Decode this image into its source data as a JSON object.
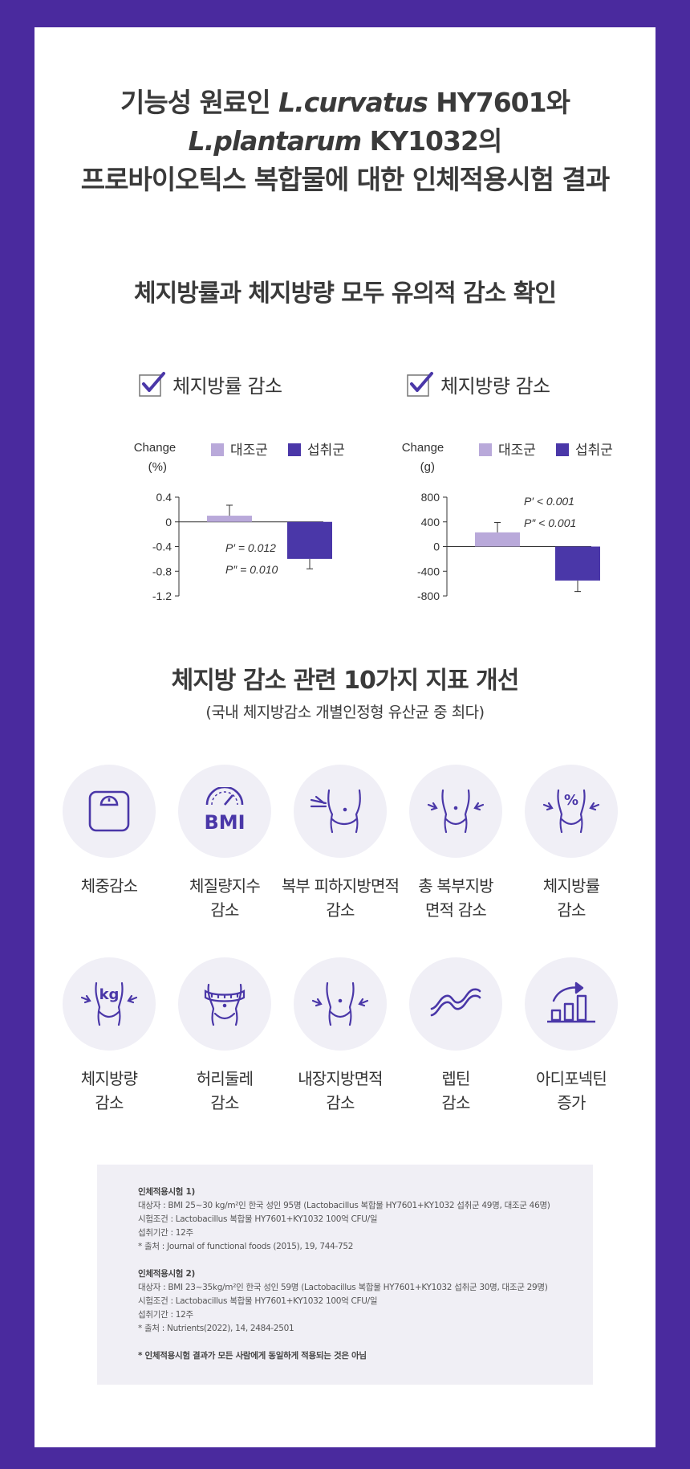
{
  "title": {
    "line1_a": "기능성 원료인 ",
    "line1_b": "L.curvatus",
    "line1_c": " HY7601와",
    "line2_a": "L.plantarum",
    "line2_b": " KY1032의",
    "line3": "프로바이오틱스 복합물에 대한 인체적용시험 결과"
  },
  "section1": {
    "title": "체지방률과 체지방량 모두 유의적 감소 확인"
  },
  "colors": {
    "control": "#b9a9da",
    "intake": "#4a37a8",
    "accent": "#4a2a9e"
  },
  "chart_data": [
    {
      "type": "bar",
      "title": "체지방률 감소",
      "ylabel": "Change (%)",
      "ylabel_lines": [
        "Change",
        "(%)"
      ],
      "ylim": [
        -1.2,
        0.4
      ],
      "yticks": [
        0.4,
        0,
        -0.4,
        -0.8,
        -1.2
      ],
      "ytick_labels": [
        "0.4",
        "0",
        "-0.4",
        "-0.8",
        "-1.2"
      ],
      "categories": [
        "대조군",
        "섭취군"
      ],
      "values": [
        0.1,
        -0.6
      ],
      "errors": [
        0.17,
        0.16
      ],
      "legend": [
        "대조군",
        "섭취군"
      ],
      "annotations": [
        "P′ = 0.012",
        "P″ = 0.010"
      ]
    },
    {
      "type": "bar",
      "title": "체지방량 감소",
      "ylabel": "Change (g)",
      "ylabel_lines": [
        "Change",
        "(g)"
      ],
      "ylim": [
        -800,
        800
      ],
      "yticks": [
        800,
        400,
        0,
        -400,
        -800
      ],
      "ytick_labels": [
        "800",
        "400",
        "0",
        "-400",
        "-800"
      ],
      "categories": [
        "대조군",
        "섭취군"
      ],
      "values": [
        230,
        -550
      ],
      "errors": [
        160,
        180
      ],
      "legend": [
        "대조군",
        "섭취군"
      ],
      "annotations": [
        "P′ < 0.001",
        "P″ < 0.001"
      ]
    }
  ],
  "section2": {
    "title": "체지방 감소 관련 10가지 지표 개선",
    "subtitle": "(국내 체지방감소 개별인정형 유산균 중 최다)",
    "items": [
      {
        "icon": "scale-icon",
        "line1": "체중감소",
        "line2": ""
      },
      {
        "icon": "bmi-gauge-icon",
        "glyph": "BMI",
        "line1": "체질량지수",
        "line2": "감소"
      },
      {
        "icon": "abdominal-fat-pinch-icon",
        "line1": "복부 피하지방면적",
        "line2": "감소"
      },
      {
        "icon": "waist-shrink-icon",
        "line1": "총 복부지방",
        "line2": "면적 감소"
      },
      {
        "icon": "waist-percent-icon",
        "glyph": "%",
        "line1": "체지방률",
        "line2": "감소"
      },
      {
        "icon": "waist-kg-icon",
        "glyph": "kg",
        "line1": "체지방량",
        "line2": "감소"
      },
      {
        "icon": "tape-measure-waist-icon",
        "line1": "허리둘레",
        "line2": "감소"
      },
      {
        "icon": "visceral-fat-waist-icon",
        "line1": "내장지방면적",
        "line2": "감소"
      },
      {
        "icon": "leptin-helix-icon",
        "line1": "렙틴",
        "line2": "감소"
      },
      {
        "icon": "bar-chart-up-icon",
        "line1": "아디포넥틴",
        "line2": "증가"
      }
    ]
  },
  "notes": {
    "study1_title": "인체적용시험 1)",
    "study1_lines": [
      "대상자 : BMI 25~30 kg/m²인 한국 성인 95명 (Lactobacillus 복합물 HY7601+KY1032 섭취군 49명, 대조군 46명)",
      "시험조건 : Lactobacillus 복합물 HY7601+KY1032 100억 CFU/일",
      "섭취기간 : 12주",
      "* 출처 : Journal of functional foods (2015), 19, 744-752"
    ],
    "study2_title": "인체적용시험 2)",
    "study2_lines": [
      "대상자 : BMI 23~35kg/m²인 한국 성인 59명 (Lactobacillus 복합물 HY7601+KY1032 섭취군 30명, 대조군 29명)",
      "시험조건 : Lactobacillus 복합물 HY7601+KY1032 100억 CFU/일",
      "섭취기간 : 12주",
      " * 출처 : Nutrients(2022), 14, 2484-2501"
    ],
    "disclaimer": "* 인체적용시험 결과가 모든 사람에게 동일하게 적용되는 것은 아님"
  }
}
